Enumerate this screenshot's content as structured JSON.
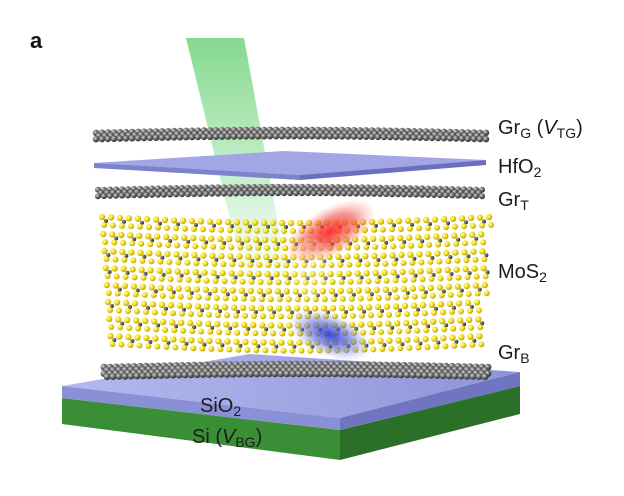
{
  "panel_letter": "a",
  "labels": {
    "gr_g": {
      "main": "Gr",
      "sub": "G",
      "paren_open": " (",
      "v": "V",
      "vsub": "TG",
      "paren_close": ")"
    },
    "hfo2": {
      "main": "HfO",
      "sub": "2"
    },
    "gr_t": {
      "main": "Gr",
      "sub": "T"
    },
    "mos2": {
      "main": "MoS",
      "sub": "2"
    },
    "gr_b": {
      "main": "Gr",
      "sub": "B"
    },
    "sio2": {
      "main": "SiO",
      "sub": "2"
    },
    "si": {
      "main": "Si (",
      "v": "V",
      "vsub": "BG",
      "paren_close": ")"
    }
  },
  "colors": {
    "graphene_atom": "#5a5a5a",
    "sulfur_atom": "#f2de1b",
    "molybdenum_atom": "#3a3a3a",
    "hfo2_plate": "#9a9ee0",
    "sio2_plate": "#a9aee6",
    "si_substrate": "#3f9a3a",
    "laser_beam": "#6fd27a",
    "electron_glow": "#e8262a",
    "hole_glow": "#3c4fd0"
  }
}
